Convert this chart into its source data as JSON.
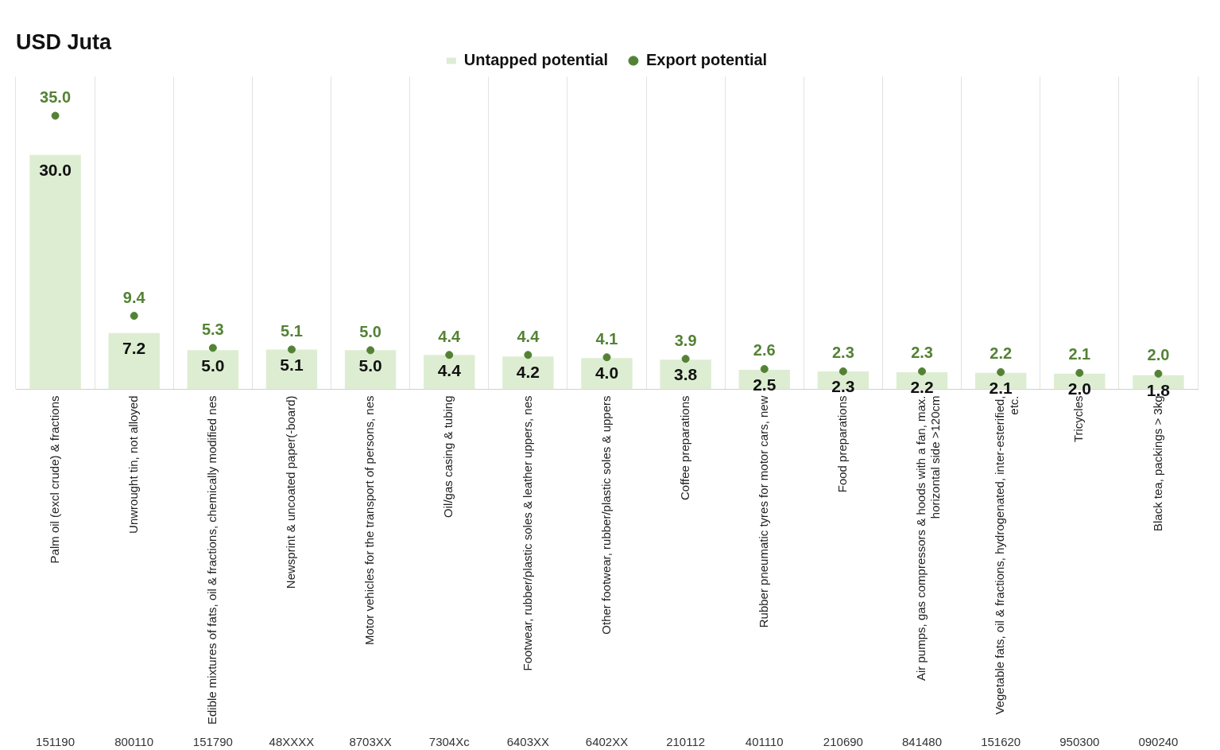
{
  "chart_data": {
    "type": "bar",
    "title": "USD Juta",
    "categories": [
      "Palm oil (excl crude) & fractions",
      "Unwrought tin, not alloyed",
      "Edible mixtures of fats, oil & fractions, chemically modified nes",
      "Newsprint & uncoated paper(-board)",
      "Motor vehicles for the transport of persons, nes",
      "Oil/gas casing & tubing",
      "Footwear, rubber/plastic soles & leather uppers, nes",
      "Other footwear, rubber/plastic soles & uppers",
      "Coffee preparations",
      "Rubber pneumatic tyres for motor cars, new",
      "Food preparations",
      "Air pumps, gas compressors & hoods with a fan, max. horizontal side >120cm",
      "Vegetable fats, oil & fractions, hydrogenated, inter-esterified, etc.",
      "Tricycles",
      "Black tea, packings > 3kg"
    ],
    "series": [
      {
        "name": "Untapped potential",
        "color": "#ddedd2",
        "values": [
          30.0,
          7.2,
          5.0,
          5.1,
          5.0,
          4.4,
          4.2,
          4.0,
          3.8,
          2.5,
          2.3,
          2.2,
          2.1,
          2.0,
          1.8
        ],
        "value_labels": [
          "30.0",
          "7.2",
          "5.0",
          "5.1",
          "5.0",
          "4.4",
          "4.2",
          "4.0",
          "3.8",
          "2.5",
          "2.3",
          "2.2",
          "2.1",
          "2.0",
          "1.8"
        ]
      },
      {
        "name": "Export potential",
        "type": "scatter",
        "color": "#548235",
        "values": [
          35.0,
          9.4,
          5.3,
          5.1,
          5.0,
          4.4,
          4.4,
          4.1,
          3.9,
          2.6,
          2.3,
          2.3,
          2.2,
          2.1,
          2.0
        ],
        "value_labels": [
          "35.0",
          "9.4",
          "5.3",
          "5.1",
          "5.0",
          "4.4",
          "4.4",
          "4.1",
          "3.9",
          "2.6",
          "2.3",
          "2.3",
          "2.2",
          "2.1",
          "2.0"
        ]
      }
    ],
    "annotations": [
      "151190",
      "800110",
      "151790",
      "48XXXX",
      "8703XX",
      "7304Xc",
      "6403XX",
      "6402XX",
      "210112",
      "401110",
      "210690",
      "841480",
      "151620",
      "950300",
      "090240"
    ],
    "grid": "x",
    "legend": "top",
    "marker": "circle"
  }
}
